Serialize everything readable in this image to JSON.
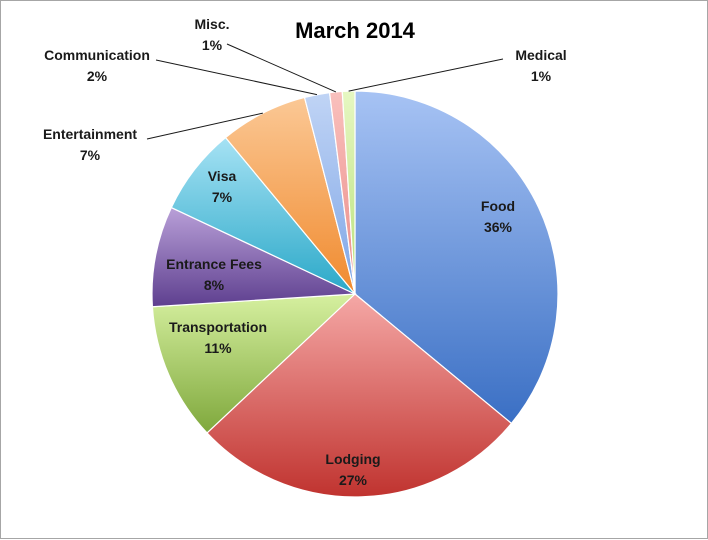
{
  "chart_data": {
    "type": "pie",
    "title": "March 2014",
    "start_angle_deg": 90,
    "direction": "clockwise",
    "slices": [
      {
        "name": "Food",
        "value": 36,
        "label": "36%",
        "color_light": "#a7c3f4",
        "color_dark": "#3a6fc4"
      },
      {
        "name": "Lodging",
        "value": 27,
        "label": "27%",
        "color_light": "#f5a8a6",
        "color_dark": "#c0332f"
      },
      {
        "name": "Transportation",
        "value": 11,
        "label": "11%",
        "color_light": "#d6f0a0",
        "color_dark": "#7fa83c"
      },
      {
        "name": "Entrance Fees",
        "value": 8,
        "label": "8%",
        "color_light": "#b9a0d8",
        "color_dark": "#5e3f8f"
      },
      {
        "name": "Visa",
        "value": 7,
        "label": "7%",
        "color_light": "#a6e2f4",
        "color_dark": "#2aa8c8"
      },
      {
        "name": "Entertainment",
        "value": 7,
        "label": "7%",
        "color_light": "#fbc895",
        "color_dark": "#f08a2e"
      },
      {
        "name": "Communication",
        "value": 2,
        "label": "2%",
        "color_light": "#c0d4f5",
        "color_dark": "#7fa6e6"
      },
      {
        "name": "Misc.",
        "value": 1,
        "label": "1%",
        "color_light": "#f9c0bd",
        "color_dark": "#ea8b86"
      },
      {
        "name": "Medical",
        "value": 1,
        "label": "1%",
        "color_light": "#e6f7c2",
        "color_dark": "#b8e07a"
      }
    ],
    "legend": "none"
  }
}
